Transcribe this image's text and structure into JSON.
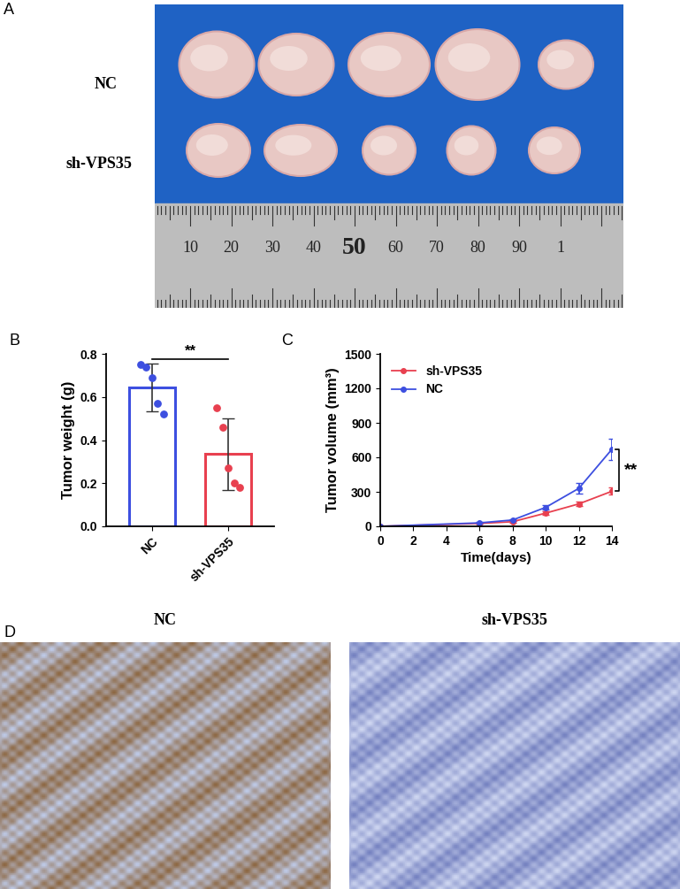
{
  "panel_labels": [
    "A",
    "B",
    "C",
    "D"
  ],
  "photo": {
    "row_labels": [
      "NC",
      "sh-VPS35"
    ],
    "ruler_labels": [
      "10",
      "20",
      "30",
      "40",
      "50",
      "60",
      "70",
      "80",
      "90",
      "1"
    ]
  },
  "chart_data": [
    {
      "type": "bar",
      "categories": [
        "NC",
        "sh-VPS35"
      ],
      "values": [
        0.645,
        0.335
      ],
      "errors": [
        0.11,
        0.165
      ],
      "points": [
        [
          0.75,
          0.74,
          0.69,
          0.57,
          0.52
        ],
        [
          0.55,
          0.46,
          0.27,
          0.2,
          0.18
        ]
      ],
      "colors": [
        "#3d4fe0",
        "#e8404f"
      ],
      "ylabel": "Tumor weight (g)",
      "ylim": [
        0,
        0.8
      ],
      "yticks": [
        0.0,
        0.2,
        0.4,
        0.6,
        0.8
      ],
      "significance": "**"
    },
    {
      "type": "line",
      "x": [
        0,
        6,
        8,
        10,
        12,
        14
      ],
      "series": [
        {
          "name": "sh-VPS35",
          "color": "#e8404f",
          "marker": "o",
          "values": [
            0,
            25,
            40,
            115,
            195,
            305
          ],
          "errors": [
            0,
            4,
            6,
            15,
            20,
            30
          ]
        },
        {
          "name": "NC",
          "color": "#3d4fe0",
          "marker": "o",
          "values": [
            0,
            30,
            55,
            165,
            330,
            670
          ],
          "errors": [
            0,
            5,
            8,
            20,
            45,
            90
          ]
        }
      ],
      "xlabel": "Time(days)",
      "ylabel": "Tumor volume (mm³)",
      "xlim": [
        0,
        14
      ],
      "xticks": [
        0,
        2,
        4,
        6,
        8,
        10,
        12,
        14
      ],
      "ylim": [
        0,
        1500
      ],
      "yticks": [
        0,
        300,
        600,
        900,
        1200,
        1500
      ],
      "legend": "upper left",
      "significance": "**"
    }
  ],
  "ihc": {
    "titles": [
      "NC",
      "sh-VPS35"
    ]
  }
}
